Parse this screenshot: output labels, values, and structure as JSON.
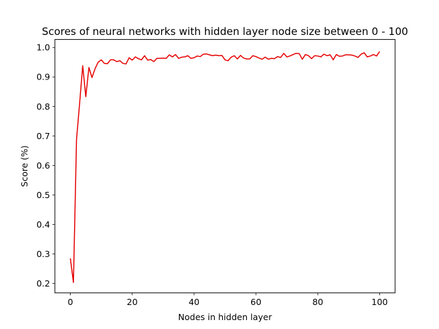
{
  "chart_data": {
    "type": "line",
    "title": "Scores of neural networks with hidden layer node size between 0 - 100",
    "xlabel": "Nodes in hidden layer",
    "ylabel": "Score (%)",
    "xlim": [
      -5,
      105
    ],
    "ylim": [
      0.168,
      1.027
    ],
    "xticks": [
      0,
      20,
      40,
      60,
      80,
      100
    ],
    "yticks": [
      0.2,
      0.3,
      0.4,
      0.5,
      0.6,
      0.7,
      0.8,
      0.9,
      1.0
    ],
    "grid": false,
    "line_color": "#e60000",
    "series": [
      {
        "x": [
          0,
          1,
          2,
          3,
          4,
          5,
          6,
          7,
          8,
          9,
          10,
          11,
          12,
          13,
          14,
          15,
          16,
          17,
          18,
          19,
          20,
          21,
          22,
          23,
          24,
          25,
          26,
          27,
          28,
          29,
          30,
          31,
          32,
          33,
          34,
          35,
          36,
          37,
          38,
          39,
          40,
          41,
          42,
          43,
          44,
          45,
          46,
          47,
          48,
          49,
          50,
          51,
          52,
          53,
          54,
          55,
          56,
          57,
          58,
          59,
          60,
          61,
          62,
          63,
          64,
          65,
          66,
          67,
          68,
          69,
          70,
          71,
          72,
          73,
          74,
          75,
          76,
          77,
          78,
          79,
          80,
          81,
          82,
          83,
          84,
          85,
          86,
          87,
          88,
          89,
          90,
          91,
          92,
          93,
          94,
          95,
          96,
          97,
          98,
          99,
          100
        ],
        "y": [
          0.285,
          0.203,
          0.688,
          0.81,
          0.938,
          0.833,
          0.932,
          0.898,
          0.928,
          0.95,
          0.958,
          0.946,
          0.945,
          0.958,
          0.958,
          0.952,
          0.955,
          0.946,
          0.944,
          0.965,
          0.957,
          0.968,
          0.962,
          0.958,
          0.972,
          0.957,
          0.959,
          0.952,
          0.963,
          0.963,
          0.964,
          0.963,
          0.975,
          0.968,
          0.976,
          0.963,
          0.967,
          0.968,
          0.972,
          0.963,
          0.965,
          0.971,
          0.969,
          0.977,
          0.978,
          0.975,
          0.972,
          0.974,
          0.972,
          0.973,
          0.958,
          0.955,
          0.967,
          0.972,
          0.961,
          0.973,
          0.964,
          0.961,
          0.961,
          0.972,
          0.969,
          0.964,
          0.96,
          0.967,
          0.96,
          0.963,
          0.962,
          0.969,
          0.966,
          0.98,
          0.968,
          0.971,
          0.976,
          0.98,
          0.979,
          0.96,
          0.976,
          0.972,
          0.962,
          0.972,
          0.971,
          0.968,
          0.977,
          0.972,
          0.975,
          0.958,
          0.976,
          0.97,
          0.971,
          0.975,
          0.975,
          0.974,
          0.971,
          0.966,
          0.977,
          0.982,
          0.968,
          0.971,
          0.976,
          0.971,
          0.986
        ]
      }
    ]
  }
}
